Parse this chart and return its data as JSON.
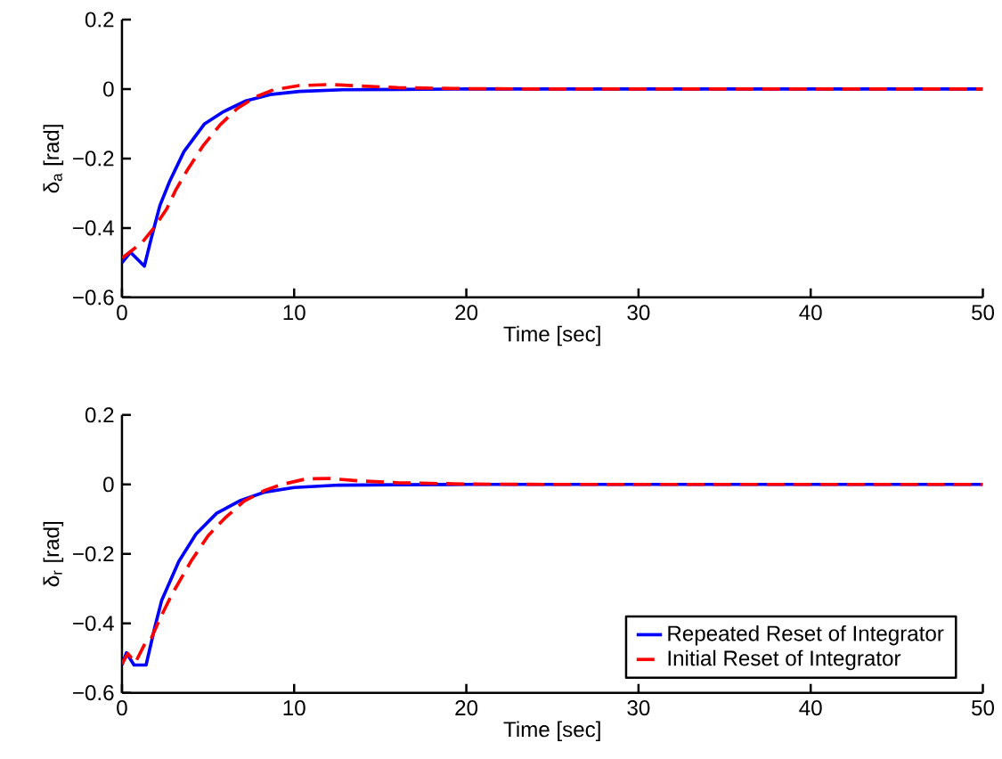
{
  "chart_data": [
    {
      "type": "line",
      "xlabel": "Time [sec]",
      "ylabel": "δ$_{a}$ [rad]",
      "xlim": [
        0,
        50
      ],
      "ylim": [
        -0.6,
        0.2
      ],
      "xticks": [
        0,
        10,
        20,
        30,
        40,
        50
      ],
      "yticks": [
        {
          "value": -0.6,
          "label": "−0.6"
        },
        {
          "value": -0.4,
          "label": "−0.4"
        },
        {
          "value": -0.2,
          "label": "−0.2"
        },
        {
          "value": 0,
          "label": "0"
        },
        {
          "value": 0.2,
          "label": "0.2"
        }
      ],
      "grid": false,
      "legend": false,
      "marker": "none",
      "series": [
        {
          "color": "#0000ff",
          "line_style": "solid",
          "x": [
            0,
            0.5,
            1.3,
            1.7,
            2.2,
            2.76,
            3.6,
            4.8,
            5.9,
            7.2,
            8.6,
            10.3,
            12.8,
            16,
            20,
            30,
            40,
            50
          ],
          "values": [
            -0.5,
            -0.47,
            -0.51,
            -0.43,
            -0.336,
            -0.267,
            -0.18,
            -0.1,
            -0.065,
            -0.034,
            -0.016,
            -0.007,
            -0.002,
            -0.001,
            0,
            0,
            0,
            0
          ]
        },
        {
          "color": "#ff0000",
          "line_style": "dashed",
          "x": [
            0,
            0.7,
            1.2,
            1.9,
            2.6,
            3.1,
            3.8,
            4.7,
            5.7,
            6.7,
            7.8,
            8.8,
            10.3,
            12.1,
            13.8,
            16,
            20,
            25,
            30,
            40,
            50
          ],
          "values": [
            -0.487,
            -0.46,
            -0.44,
            -0.397,
            -0.345,
            -0.293,
            -0.233,
            -0.164,
            -0.103,
            -0.056,
            -0.022,
            -0.002,
            0.01,
            0.013,
            0.009,
            0.004,
            0.001,
            0,
            0,
            0,
            0
          ]
        }
      ]
    },
    {
      "type": "line",
      "xlabel": "Time [sec]",
      "ylabel": "δ$_{r}$ [rad]",
      "xlim": [
        0,
        50
      ],
      "ylim": [
        -0.6,
        0.2
      ],
      "xticks": [
        0,
        10,
        20,
        30,
        40,
        50
      ],
      "yticks": [
        {
          "value": -0.6,
          "label": "−0.6"
        },
        {
          "value": -0.4,
          "label": "−0.4"
        },
        {
          "value": -0.2,
          "label": "−0.2"
        },
        {
          "value": 0,
          "label": "0"
        },
        {
          "value": 0.2,
          "label": "0.2"
        }
      ],
      "grid": false,
      "legend": "bottom right",
      "marker": "none",
      "series": [
        {
          "name": "Repeated Reset of Integrator",
          "color": "#0000ff",
          "line_style": "solid",
          "x": [
            0,
            0.26,
            0.7,
            1.4,
            1.9,
            2.3,
            3.3,
            4.3,
            5.5,
            6.9,
            8.3,
            10,
            12.6,
            16,
            20,
            30,
            40,
            50
          ],
          "values": [
            -0.52,
            -0.485,
            -0.52,
            -0.52,
            -0.413,
            -0.335,
            -0.222,
            -0.143,
            -0.083,
            -0.046,
            -0.022,
            -0.009,
            -0.002,
            -0.001,
            0,
            0,
            0,
            0
          ]
        },
        {
          "name": "Initial Reset of Integrator",
          "color": "#ff0000",
          "line_style": "dashed",
          "x": [
            0,
            0.34,
            0.78,
            1.4,
            1.7,
            2.2,
            2.9,
            4,
            5,
            6,
            7.1,
            8.3,
            9.3,
            10.7,
            12.1,
            13.8,
            16,
            20,
            25,
            30,
            40,
            50
          ],
          "values": [
            -0.517,
            -0.487,
            -0.513,
            -0.452,
            -0.443,
            -0.387,
            -0.317,
            -0.222,
            -0.148,
            -0.096,
            -0.048,
            -0.017,
            0,
            0.016,
            0.017,
            0.01,
            0.005,
            0.001,
            0,
            0,
            0,
            0
          ]
        }
      ]
    }
  ]
}
